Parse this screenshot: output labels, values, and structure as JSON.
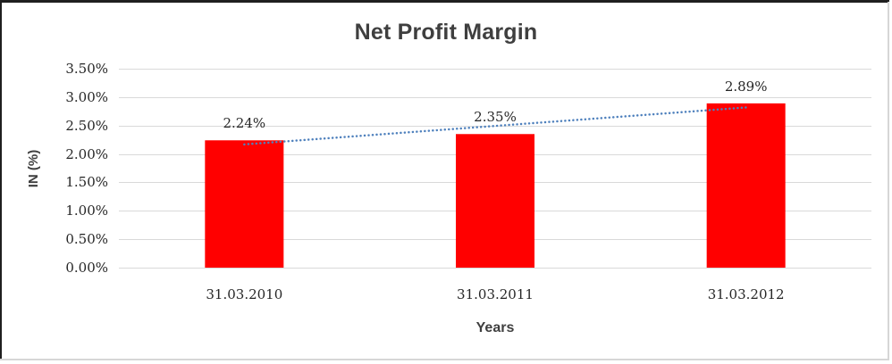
{
  "chart_data": {
    "type": "bar",
    "title": "Net Profit Margin",
    "xlabel": "Years",
    "ylabel": "IN (%)",
    "categories": [
      "31.03.2010",
      "31.03.2011",
      "31.03.2012"
    ],
    "values": [
      2.24,
      2.35,
      2.89
    ],
    "value_labels": [
      "2.24%",
      "2.35%",
      "2.89%"
    ],
    "yticks": [
      0,
      0.5,
      1,
      1.5,
      2,
      2.5,
      3,
      3.5
    ],
    "ytick_labels": [
      "0.00%",
      "0.50%",
      "1.00%",
      "1.50%",
      "2.00%",
      "2.50%",
      "3.00%",
      "3.50%"
    ],
    "ylim": [
      0,
      3.5
    ],
    "grid": true,
    "legend": "none",
    "trendline": {
      "type": "linear",
      "style": "dotted",
      "color": "#4f81bd"
    },
    "colors": {
      "bar": "#ff0000",
      "gridline": "#d9d9d9",
      "title_text": "#3f3f3f",
      "tick_text": "#262626",
      "frame_dark": "#1f1f1f",
      "frame_light": "#d6d6d6"
    }
  }
}
